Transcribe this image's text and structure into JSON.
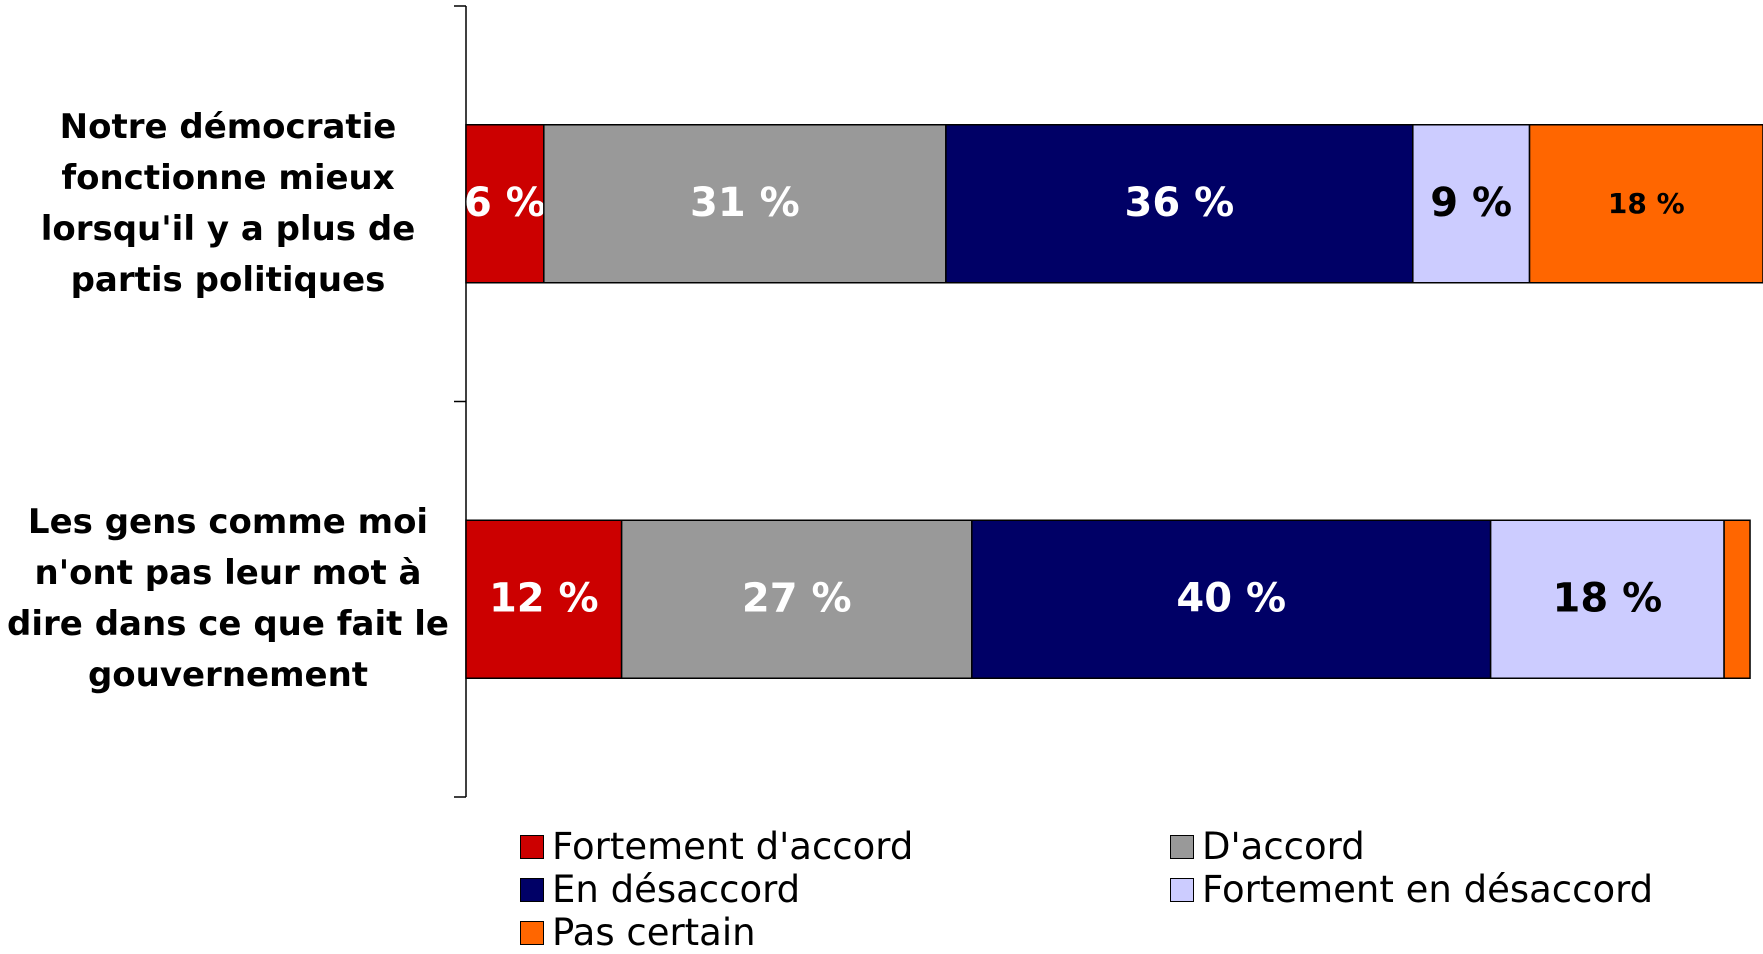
{
  "chart_data": {
    "type": "bar",
    "orientation": "horizontal",
    "stacked": true,
    "title": "",
    "xlabel": "",
    "ylabel": "",
    "categories": [
      "Notre démocratie fonctionne mieux lorsqu'il y a plus de partis politiques",
      "Les gens comme moi n'ont pas leur mot à dire dans ce que fait le gouvernement"
    ],
    "series": [
      {
        "name": "Fortement d'accord",
        "color": "#cc0000",
        "values": [
          6,
          12
        ],
        "labels": [
          "6 %",
          "12 %"
        ]
      },
      {
        "name": "D'accord",
        "color": "#999999",
        "values": [
          31,
          27
        ],
        "labels": [
          "31 %",
          "27 %"
        ]
      },
      {
        "name": "En désaccord",
        "color": "#000066",
        "values": [
          36,
          40
        ],
        "labels": [
          "36 %",
          "40 %"
        ]
      },
      {
        "name": "Fortement en désaccord",
        "color": "#ccccff",
        "values": [
          9,
          18
        ],
        "labels": [
          "9 %",
          "18 %"
        ]
      },
      {
        "name": "Pas certain",
        "color": "#ff6600",
        "values": [
          18,
          2
        ],
        "labels": [
          "18 %",
          ""
        ]
      }
    ],
    "xlim": [
      0,
      100
    ],
    "legend_position": "bottom",
    "grid": false
  }
}
